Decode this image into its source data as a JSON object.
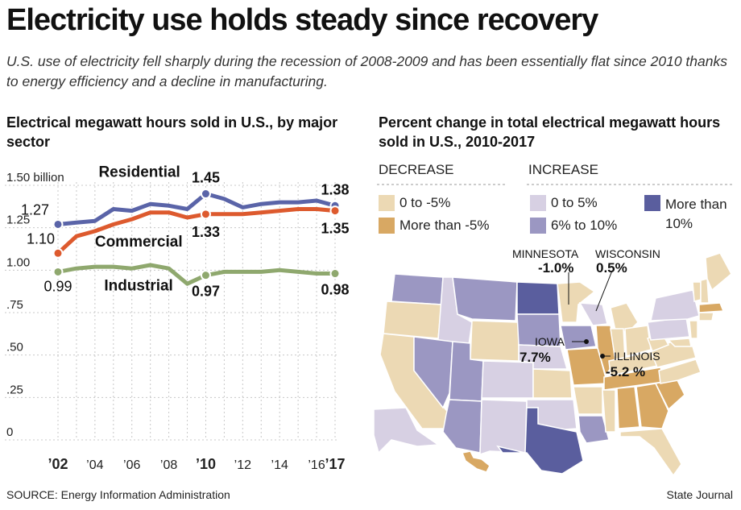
{
  "header": {
    "title": "Electricity use holds steady since recovery",
    "subtitle": "U.S. use of electricity fell sharply during the recession of 2008-2009 and has been essentially flat since 2010 thanks to energy efficiency and a decline in manufacturing."
  },
  "left_panel": {
    "title": "Electrical megawatt hours sold in U.S., by major sector"
  },
  "right_panel": {
    "title": "Percent change in total electrical megawatt hours sold in U.S., 2010-2017",
    "legend": {
      "decrease_label": "DECREASE",
      "increase_label": "INCREASE",
      "items": [
        {
          "label": "0 to -5%",
          "color": "#ecd9b4"
        },
        {
          "label": "More than -5%",
          "color": "#d8a863"
        },
        {
          "label": "0 to 5%",
          "color": "#d7d0e3"
        },
        {
          "label": "6% to 10%",
          "color": "#9b97c2"
        },
        {
          "label": "More than 10%",
          "color": "#5a5e9e"
        }
      ]
    },
    "callouts": [
      {
        "state": "MINNESOTA",
        "value": "-1.0%"
      },
      {
        "state": "WISCONSIN",
        "value": "0.5%"
      },
      {
        "state": "IOWA",
        "value": "7.7%"
      },
      {
        "state": "ILLINOIS",
        "value": "-5.2 %"
      }
    ]
  },
  "chart_data": {
    "type": "line",
    "title": "Electrical megawatt hours sold in U.S., by major sector",
    "xlabel": "",
    "ylabel": "",
    "x": [
      2002,
      2003,
      2004,
      2005,
      2006,
      2007,
      2008,
      2009,
      2010,
      2011,
      2012,
      2013,
      2014,
      2015,
      2016,
      2017
    ],
    "xticks": [
      {
        "value": 2002,
        "label": "’02",
        "bold": true
      },
      {
        "value": 2004,
        "label": "’04",
        "bold": false
      },
      {
        "value": 2006,
        "label": "’06",
        "bold": false
      },
      {
        "value": 2008,
        "label": "’08",
        "bold": false
      },
      {
        "value": 2010,
        "label": "’10",
        "bold": true
      },
      {
        "value": 2012,
        "label": "’12",
        "bold": false
      },
      {
        "value": 2014,
        "label": "’14",
        "bold": false
      },
      {
        "value": 2016,
        "label": "’16",
        "bold": false
      },
      {
        "value": 2017,
        "label": "’17",
        "bold": true
      }
    ],
    "yticks": [
      {
        "value": 0,
        "label": "0"
      },
      {
        "value": 0.25,
        "label": ".25"
      },
      {
        "value": 0.5,
        "label": ".50"
      },
      {
        "value": 0.75,
        "label": ".75"
      },
      {
        "value": 1.0,
        "label": "1.00"
      },
      {
        "value": 1.25,
        "label": "1.25"
      },
      {
        "value": 1.5,
        "label": "1.50 billion"
      }
    ],
    "ylim": [
      0,
      1.5
    ],
    "series": [
      {
        "name": "Residential",
        "color": "#5a64a8",
        "values": [
          1.27,
          1.28,
          1.29,
          1.36,
          1.35,
          1.39,
          1.38,
          1.36,
          1.45,
          1.42,
          1.37,
          1.39,
          1.4,
          1.4,
          1.41,
          1.38
        ],
        "labels": [
          {
            "year": 2002,
            "text": "1.27"
          },
          {
            "year": 2010,
            "text": "1.45"
          },
          {
            "year": 2017,
            "text": "1.38"
          }
        ]
      },
      {
        "name": "Commercial",
        "color": "#dd5a2e",
        "values": [
          1.1,
          1.2,
          1.23,
          1.27,
          1.3,
          1.34,
          1.34,
          1.31,
          1.33,
          1.33,
          1.33,
          1.34,
          1.35,
          1.36,
          1.36,
          1.35
        ],
        "labels": [
          {
            "year": 2002,
            "text": "1.10"
          },
          {
            "year": 2010,
            "text": "1.33"
          },
          {
            "year": 2017,
            "text": "1.35"
          }
        ]
      },
      {
        "name": "Industrial",
        "color": "#8fa86e",
        "values": [
          0.99,
          1.01,
          1.02,
          1.02,
          1.01,
          1.03,
          1.01,
          0.92,
          0.97,
          0.99,
          0.99,
          0.99,
          1.0,
          0.99,
          0.98,
          0.98
        ],
        "labels": [
          {
            "year": 2002,
            "text": "0.99"
          },
          {
            "year": 2010,
            "text": "0.97"
          },
          {
            "year": 2017,
            "text": "0.98"
          }
        ]
      }
    ]
  },
  "footer": {
    "source": "SOURCE: Energy Information Administration",
    "credit": "State Journal"
  }
}
